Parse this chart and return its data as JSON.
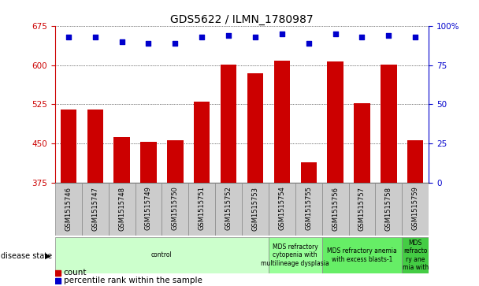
{
  "title": "GDS5622 / ILMN_1780987",
  "samples": [
    "GSM1515746",
    "GSM1515747",
    "GSM1515748",
    "GSM1515749",
    "GSM1515750",
    "GSM1515751",
    "GSM1515752",
    "GSM1515753",
    "GSM1515754",
    "GSM1515755",
    "GSM1515756",
    "GSM1515757",
    "GSM1515758",
    "GSM1515759"
  ],
  "counts": [
    515,
    515,
    462,
    454,
    456,
    530,
    601,
    585,
    608,
    415,
    607,
    527,
    601,
    456
  ],
  "percentiles": [
    93,
    93,
    90,
    89,
    89,
    93,
    94,
    93,
    95,
    89,
    95,
    93,
    94,
    93
  ],
  "ylim_left": [
    375,
    675
  ],
  "ylim_right": [
    0,
    100
  ],
  "yticks_left": [
    375,
    450,
    525,
    600,
    675
  ],
  "yticks_right": [
    0,
    25,
    50,
    75,
    100
  ],
  "bar_color": "#cc0000",
  "dot_color": "#0000cc",
  "bg_color": "#ffffff",
  "disease_groups": [
    {
      "label": "control",
      "start": 0,
      "end": 8,
      "color": "#ccffcc"
    },
    {
      "label": "MDS refractory\ncytopenia with\nmultilineage dysplasia",
      "start": 8,
      "end": 10,
      "color": "#99ff99"
    },
    {
      "label": "MDS refractory anemia\nwith excess blasts-1",
      "start": 10,
      "end": 13,
      "color": "#66ee66"
    },
    {
      "label": "MDS\nrefracto\nry ane\nmia with",
      "start": 13,
      "end": 14,
      "color": "#44cc44"
    }
  ],
  "xlabel_disease": "disease state",
  "legend_count": "count",
  "legend_percentile": "percentile rank within the sample",
  "tick_color_left": "#cc0000",
  "tick_color_right": "#0000cc",
  "xticklabel_bg": "#cccccc",
  "title_fontsize": 10,
  "axis_fontsize": 7.5,
  "sample_fontsize": 6.0,
  "disease_fontsize": 5.5,
  "legend_fontsize": 7.5
}
